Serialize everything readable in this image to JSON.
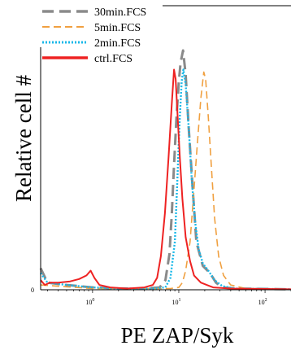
{
  "chart_data": {
    "type": "line",
    "title": "",
    "xlabel": "PE ZAP/Syk",
    "ylabel": "Relative cell #",
    "x_scale": "log",
    "xlim": [
      0.25,
      200
    ],
    "ylim": [
      0,
      100
    ],
    "y_ticks": [
      {
        "value": 0,
        "label": "0"
      }
    ],
    "x_ticks": [
      {
        "value": 1,
        "base": "10",
        "exp": "0"
      },
      {
        "value": 10,
        "base": "10",
        "exp": "1"
      },
      {
        "value": 100,
        "base": "10",
        "exp": "2"
      }
    ],
    "grid": false,
    "legend_position": "top-left",
    "series": [
      {
        "name": "30min.FCS",
        "color": "#8a8a8a",
        "style": "dash-long",
        "points": [
          [
            0.25,
            9
          ],
          [
            0.3,
            3
          ],
          [
            0.5,
            2
          ],
          [
            1,
            1
          ],
          [
            2,
            0.5
          ],
          [
            4,
            0.5
          ],
          [
            6,
            1
          ],
          [
            7,
            4
          ],
          [
            7.8,
            15
          ],
          [
            8.3,
            32
          ],
          [
            8.8,
            52
          ],
          [
            9.4,
            72
          ],
          [
            10,
            87
          ],
          [
            10.5,
            95
          ],
          [
            11.2,
            100
          ],
          [
            12,
            90
          ],
          [
            13,
            68
          ],
          [
            14.5,
            42
          ],
          [
            16,
            20
          ],
          [
            19,
            10
          ],
          [
            23,
            7
          ],
          [
            27,
            3
          ],
          [
            32,
            1
          ],
          [
            45,
            0.5
          ],
          [
            200,
            0.2
          ]
        ]
      },
      {
        "name": "5min.FCS",
        "color": "#f0a040",
        "style": "dash-short",
        "points": [
          [
            0.25,
            2
          ],
          [
            1,
            0.5
          ],
          [
            5,
            0.5
          ],
          [
            8,
            0.5
          ],
          [
            10,
            1
          ],
          [
            11,
            3
          ],
          [
            12,
            8
          ],
          [
            13.5,
            20
          ],
          [
            15,
            42
          ],
          [
            16.5,
            62
          ],
          [
            18,
            80
          ],
          [
            19.5,
            91
          ],
          [
            20.5,
            88
          ],
          [
            22,
            72
          ],
          [
            24,
            50
          ],
          [
            26,
            30
          ],
          [
            29,
            14
          ],
          [
            33,
            6
          ],
          [
            40,
            2
          ],
          [
            60,
            0.5
          ],
          [
            200,
            0.2
          ]
        ]
      },
      {
        "name": "2min.FCS",
        "color": "#18b8e8",
        "style": "dotted",
        "points": [
          [
            0.25,
            7
          ],
          [
            0.3,
            3
          ],
          [
            0.5,
            2
          ],
          [
            1,
            1
          ],
          [
            2,
            0.5
          ],
          [
            5,
            0.5
          ],
          [
            7,
            1
          ],
          [
            8,
            5
          ],
          [
            9,
            20
          ],
          [
            9.6,
            45
          ],
          [
            10.2,
            70
          ],
          [
            10.8,
            87
          ],
          [
            11.3,
            92
          ],
          [
            12,
            86
          ],
          [
            13,
            68
          ],
          [
            14.2,
            45
          ],
          [
            15.5,
            28
          ],
          [
            17,
            17
          ],
          [
            19,
            11
          ],
          [
            22,
            8
          ],
          [
            26,
            4
          ],
          [
            32,
            1.5
          ],
          [
            45,
            0.5
          ],
          [
            200,
            0.2
          ]
        ]
      },
      {
        "name": "ctrl.FCS",
        "color": "#ee2222",
        "style": "solid",
        "points": [
          [
            0.25,
            4
          ],
          [
            0.28,
            2
          ],
          [
            0.32,
            3
          ],
          [
            0.4,
            3
          ],
          [
            0.55,
            3.5
          ],
          [
            0.7,
            4.5
          ],
          [
            0.85,
            6
          ],
          [
            0.95,
            8
          ],
          [
            1.05,
            5
          ],
          [
            1.2,
            2
          ],
          [
            1.6,
            1
          ],
          [
            2.5,
            0.5
          ],
          [
            4,
            1
          ],
          [
            5,
            2
          ],
          [
            5.6,
            5
          ],
          [
            6.2,
            14
          ],
          [
            6.9,
            32
          ],
          [
            7.6,
            55
          ],
          [
            8.3,
            78
          ],
          [
            8.8,
            92
          ],
          [
            9.2,
            88
          ],
          [
            9.7,
            72
          ],
          [
            10.3,
            55
          ],
          [
            11,
            38
          ],
          [
            12,
            22
          ],
          [
            13.5,
            12
          ],
          [
            15,
            6
          ],
          [
            18,
            3
          ],
          [
            25,
            1
          ],
          [
            40,
            0.5
          ],
          [
            200,
            0.2
          ]
        ]
      }
    ]
  }
}
